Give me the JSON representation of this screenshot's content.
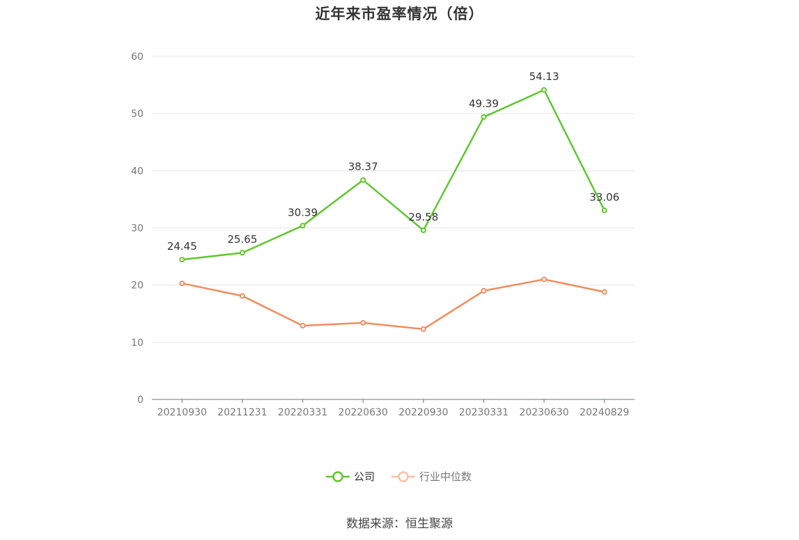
{
  "chart_data": {
    "type": "line",
    "title": "近年来市盈率情况（倍）",
    "categories": [
      "20210930",
      "20211231",
      "20220331",
      "20220630",
      "20220930",
      "20230331",
      "20230630",
      "20240829"
    ],
    "ylim": [
      0,
      60
    ],
    "yticks": [
      0,
      10,
      20,
      30,
      40,
      50,
      60
    ],
    "grid": true,
    "legend_position": "bottom",
    "series": [
      {
        "name": "公司",
        "color": "#5ec72c",
        "values": [
          24.45,
          25.65,
          30.39,
          38.37,
          29.58,
          49.39,
          54.13,
          33.06
        ],
        "labels": [
          "24.45",
          "25.65",
          "30.39",
          "38.37",
          "29.58",
          "49.39",
          "54.13",
          "33.06"
        ]
      },
      {
        "name": "行业中位数",
        "color": "#f28c5b",
        "values": [
          20.3,
          18.1,
          12.9,
          13.4,
          12.3,
          19.0,
          21.0,
          18.8
        ]
      }
    ]
  },
  "source": "数据来源：恒生聚源"
}
